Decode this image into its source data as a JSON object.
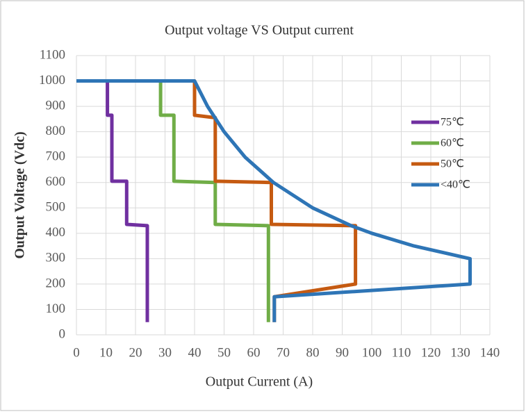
{
  "chart_data": {
    "type": "line",
    "title": "Output voltage VS Output current",
    "x_label": "Output Current (A)",
    "y_label": "Output Voltage (Vdc)",
    "xlim": [
      0,
      140
    ],
    "xticks": [
      0,
      10,
      20,
      30,
      40,
      50,
      60,
      70,
      80,
      90,
      100,
      110,
      120,
      130,
      140
    ],
    "ylim": [
      0,
      1100
    ],
    "yticks": [
      0,
      100,
      200,
      300,
      400,
      500,
      600,
      700,
      800,
      900,
      1000,
      1100
    ],
    "grid": true,
    "legend": "right",
    "series": [
      {
        "name": "75℃",
        "color": "#7030a0",
        "x": [
          0,
          10.5,
          10.5,
          12,
          12,
          17,
          17,
          24,
          24
        ],
        "values": [
          1000,
          1000,
          865,
          865,
          605,
          605,
          435,
          430,
          50
        ]
      },
      {
        "name": "60℃",
        "color": "#70ad47",
        "x": [
          0,
          28.5,
          28.5,
          33,
          33,
          47,
          47,
          65,
          65
        ],
        "values": [
          1000,
          1000,
          865,
          865,
          605,
          600,
          435,
          430,
          50
        ]
      },
      {
        "name": "50℃",
        "color": "#c55a11",
        "x": [
          0,
          40,
          40,
          47,
          47,
          66,
          66,
          94.5,
          94.5,
          67,
          67
        ],
        "values": [
          1000,
          1000,
          865,
          855,
          605,
          600,
          435,
          430,
          200,
          150,
          50
        ]
      },
      {
        "name": "<40℃",
        "color": "#2e75b6",
        "x": [
          0,
          40,
          44.4,
          50,
          57.1,
          66.7,
          80,
          93,
          100,
          114.3,
          133.3,
          133.3,
          67,
          67
        ],
        "values": [
          1000,
          1000,
          900,
          800,
          700,
          600,
          500,
          430,
          400,
          350,
          300,
          200,
          150,
          50
        ]
      }
    ]
  }
}
